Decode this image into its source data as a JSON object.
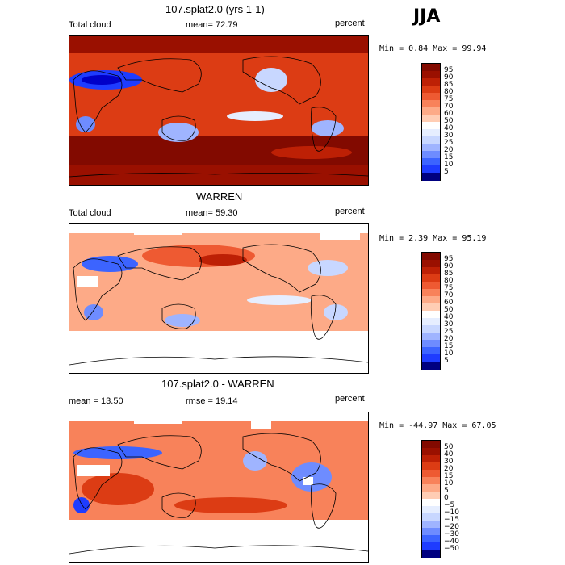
{
  "season": "JJA",
  "palettes": {
    "cloud": [
      "#000080",
      "#0000c8",
      "#1e3cff",
      "#3c64ff",
      "#6e8cff",
      "#9fb4ff",
      "#c8d7ff",
      "#e6eeff",
      "#ffffff",
      "#ffe6d8",
      "#ffcdb4",
      "#fdaa87",
      "#f8825a",
      "#ee5a32",
      "#dc3c14",
      "#bd2005",
      "#9a1000",
      "#820a00"
    ],
    "diff": [
      "#000080",
      "#0000c8",
      "#1e3cff",
      "#3c64ff",
      "#6e8cff",
      "#9fb4ff",
      "#c8d7ff",
      "#e6eeff",
      "#ffffff",
      "#ffe6d8",
      "#ffcdb4",
      "#fdaa87",
      "#f8825a",
      "#ee5a32",
      "#dc3c14",
      "#bd2005",
      "#9a1000",
      "#820a00"
    ]
  },
  "panels": [
    {
      "title": "107.splat2.0 (yrs 1-1)",
      "left_label": "Total cloud",
      "mid_label": "mean=  72.79",
      "unit": "percent",
      "minmax": "Min =   0.84 Max =  99.94",
      "colorbar_ticks": [
        "95",
        "90",
        "85",
        "80",
        "75",
        "70",
        "60",
        "50",
        "40",
        "30",
        "25",
        "20",
        "15",
        "10",
        "5"
      ]
    },
    {
      "title": "WARREN",
      "left_label": "Total cloud",
      "mid_label": "mean=  59.30",
      "unit": "percent",
      "minmax": "Min =   2.39 Max =  95.19",
      "colorbar_ticks": [
        "95",
        "90",
        "85",
        "80",
        "75",
        "70",
        "60",
        "50",
        "40",
        "30",
        "25",
        "20",
        "15",
        "10",
        "5"
      ]
    },
    {
      "title": "107.splat2.0 - WARREN",
      "left_label": "mean =  13.50",
      "mid_label": "rmse =  19.14",
      "unit": "percent",
      "minmax": "Min = -44.97 Max =  67.05",
      "colorbar_ticks": [
        "50",
        "40",
        "30",
        "20",
        "15",
        "10",
        "5",
        "0",
        "−5",
        "−10",
        "−15",
        "−20",
        "−30",
        "−40",
        "−50"
      ]
    }
  ],
  "chart_data": [
    {
      "type": "heatmap",
      "title": "107.splat2.0 (yrs 1-1)",
      "variable": "Total cloud",
      "units": "percent",
      "season": "JJA",
      "mean": 72.79,
      "min": 0.84,
      "max": 99.94,
      "contour_levels": [
        5,
        10,
        15,
        20,
        25,
        30,
        40,
        50,
        60,
        70,
        75,
        80,
        85,
        90,
        95
      ]
    },
    {
      "type": "heatmap",
      "title": "WARREN",
      "variable": "Total cloud",
      "units": "percent",
      "season": "JJA",
      "mean": 59.3,
      "min": 2.39,
      "max": 95.19,
      "contour_levels": [
        5,
        10,
        15,
        20,
        25,
        30,
        40,
        50,
        60,
        70,
        75,
        80,
        85,
        90,
        95
      ],
      "missing_data": "land and polar regions shown white"
    },
    {
      "type": "heatmap",
      "title": "107.splat2.0 - WARREN",
      "units": "percent",
      "season": "JJA",
      "mean": 13.5,
      "rmse": 19.14,
      "min": -44.97,
      "max": 67.05,
      "contour_levels": [
        -50,
        -40,
        -30,
        -20,
        -15,
        -10,
        -5,
        0,
        5,
        10,
        15,
        20,
        30,
        40,
        50
      ]
    }
  ]
}
